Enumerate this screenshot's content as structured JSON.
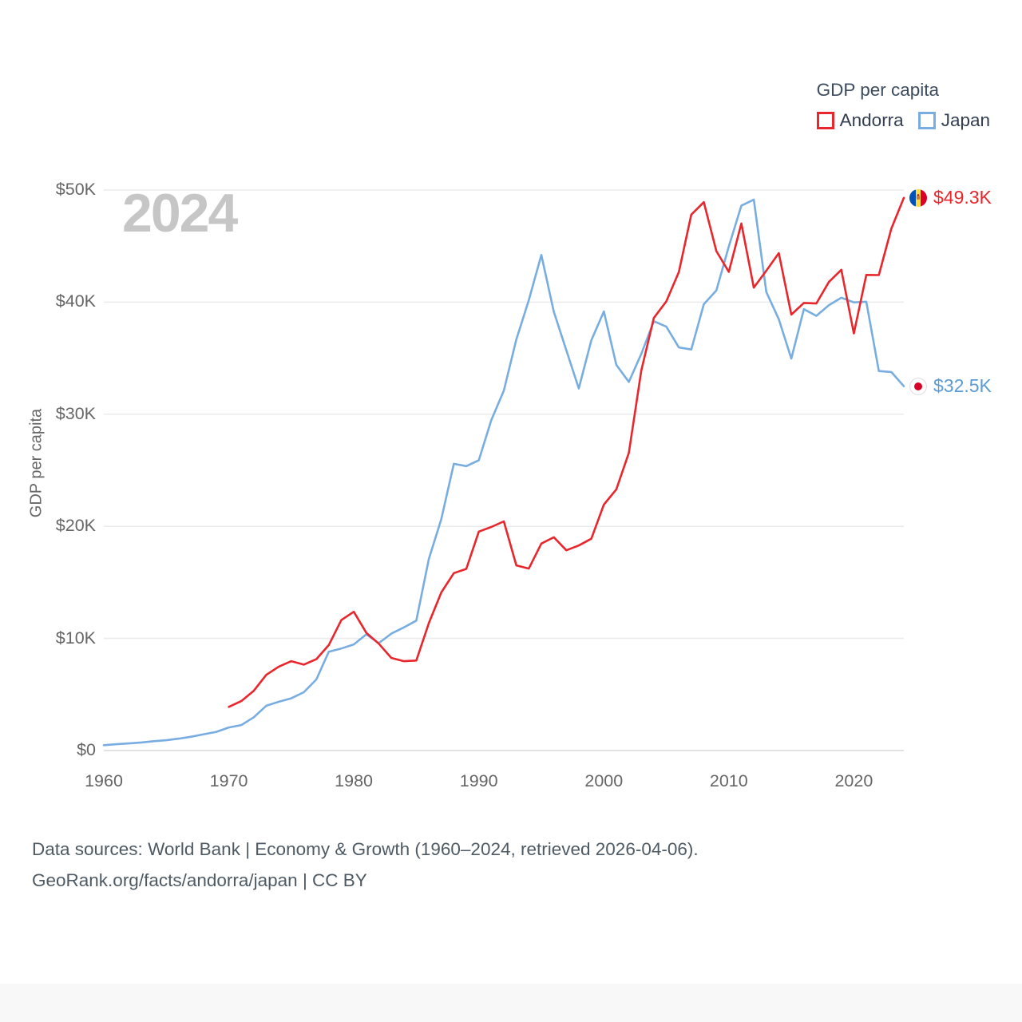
{
  "watermark": "2024",
  "legend": {
    "title": "GDP per capita",
    "items": [
      {
        "label": "Andorra",
        "color": "#e8262b"
      },
      {
        "label": "Japan",
        "color": "#78ade2"
      }
    ]
  },
  "y_axis_title": "GDP per capita",
  "end_labels": {
    "andorra": {
      "value": "$49.3K",
      "color": "#e8262b",
      "flag": "andorra-flag-icon"
    },
    "japan": {
      "value": "$32.5K",
      "color": "#5b9bd5",
      "flag": "japan-flag-icon"
    }
  },
  "footer": {
    "line1": "Data sources: World Bank | Economy & Growth (1960–2024, retrieved 2026-04-06).",
    "line2": "GeoRank.org/facts/andorra/japan | CC BY"
  },
  "chart_data": {
    "type": "line",
    "title": "GDP per capita",
    "ylabel": "GDP per capita",
    "xlabel": "",
    "ylim": [
      0,
      50000
    ],
    "grid": "horizontal",
    "legend_position": "top-right",
    "x": [
      1960,
      1961,
      1962,
      1963,
      1964,
      1965,
      1966,
      1967,
      1968,
      1969,
      1970,
      1971,
      1972,
      1973,
      1974,
      1975,
      1976,
      1977,
      1978,
      1979,
      1980,
      1981,
      1982,
      1983,
      1984,
      1985,
      1986,
      1987,
      1988,
      1989,
      1990,
      1991,
      1992,
      1993,
      1994,
      1995,
      1996,
      1997,
      1998,
      1999,
      2000,
      2001,
      2002,
      2003,
      2004,
      2005,
      2006,
      2007,
      2008,
      2009,
      2010,
      2011,
      2012,
      2013,
      2014,
      2015,
      2016,
      2017,
      2018,
      2019,
      2020,
      2021,
      2022,
      2023,
      2024
    ],
    "x_ticks": [
      {
        "value": 1960,
        "label": "1960"
      },
      {
        "value": 1970,
        "label": "1970"
      },
      {
        "value": 1980,
        "label": "1980"
      },
      {
        "value": 1990,
        "label": "1990"
      },
      {
        "value": 2000,
        "label": "2000"
      },
      {
        "value": 2010,
        "label": "2010"
      },
      {
        "value": 2020,
        "label": "2020"
      }
    ],
    "y_ticks": [
      {
        "value": 0,
        "label": "$0"
      },
      {
        "value": 10000,
        "label": "$10K"
      },
      {
        "value": 20000,
        "label": "$20K"
      },
      {
        "value": 30000,
        "label": "$30K"
      },
      {
        "value": 40000,
        "label": "$40K"
      },
      {
        "value": 50000,
        "label": "$50K"
      }
    ],
    "series": [
      {
        "name": "Andorra",
        "color": "#e8262b",
        "end_label": "$49.3K",
        "values": [
          null,
          null,
          null,
          null,
          null,
          null,
          null,
          null,
          null,
          null,
          3893,
          4409,
          5333,
          6754,
          7483,
          7968,
          7663,
          8150,
          9408,
          11637,
          12378,
          10502,
          9530,
          8260,
          7972,
          8029,
          11371,
          14101,
          15823,
          16205,
          19533,
          19945,
          20442,
          16516,
          16235,
          18461,
          19021,
          17863,
          18289,
          18894,
          21936,
          23297,
          26551,
          33897,
          38588,
          40067,
          42675,
          47804,
          48919,
          44553,
          42701,
          47019,
          41296,
          42807,
          44371,
          38886,
          39932,
          39880,
          41793,
          42886,
          37207,
          42426,
          42414,
          46545,
          49300
        ]
      },
      {
        "name": "Japan",
        "color": "#78ade2",
        "end_label": "$32.5K",
        "values": [
          479,
          564,
          634,
          718,
          836,
          920,
          1058,
          1229,
          1451,
          1669,
          2056,
          2272,
          2967,
          3998,
          4354,
          4659,
          5197,
          6336,
          8821,
          9106,
          9465,
          10361,
          9578,
          10425,
          10985,
          11585,
          17090,
          20649,
          25575,
          25371,
          25896,
          29470,
          32103,
          36672,
          40179,
          44210,
          39146,
          35706,
          32301,
          36593,
          39169,
          34406,
          32880,
          35387,
          38297,
          37812,
          35965,
          35779,
          39816,
          41040,
          44968,
          48603,
          49145,
          40898,
          38475,
          34961,
          39375,
          38778,
          39727,
          40390,
          39981,
          40034,
          33854,
          33766,
          32498
        ]
      }
    ]
  }
}
